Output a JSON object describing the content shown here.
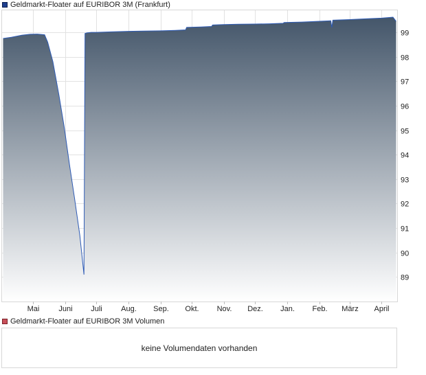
{
  "legend": {
    "price_label": "Geldmarkt-Floater auf EURIBOR 3M (Frankfurt)",
    "price_color": "#1f3f8f",
    "volume_label": "Geldmarkt-Floater auf EURIBOR 3M Volumen",
    "volume_color": "#c8505a"
  },
  "volume_panel": {
    "message": "keine Volumendaten vorhanden"
  },
  "chart_data": {
    "type": "area",
    "title": "",
    "xlabel": "",
    "ylabel": "",
    "ylim": [
      88.0,
      99.9
    ],
    "grid": true,
    "y_axis_position": "right",
    "y_ticks": [
      89,
      90,
      91,
      92,
      93,
      94,
      95,
      96,
      97,
      98,
      99
    ],
    "x_ticks": [
      "Mai",
      "Juni",
      "Juli",
      "Aug.",
      "Sep.",
      "Okt.",
      "Nov.",
      "Dez.",
      "Jan.",
      "Feb.",
      "März",
      "April"
    ],
    "series": [
      {
        "name": "Geldmarkt-Floater auf EURIBOR 3M (Frankfurt)",
        "line_color": "#2e5bb5",
        "fill_top_color": "#44566a",
        "fill_bottom_color": "#ffffff",
        "x": [
          "2023-04-02",
          "2023-04-10",
          "2023-04-20",
          "2023-04-28",
          "2023-05-05",
          "2023-05-12",
          "2023-05-15",
          "2023-05-20",
          "2023-05-26",
          "2023-05-31",
          "2023-06-05",
          "2023-06-10",
          "2023-06-15",
          "2023-06-19",
          "2023-06-20",
          "2023-06-22",
          "2023-06-26",
          "2023-07-01",
          "2023-07-15",
          "2023-08-01",
          "2023-08-15",
          "2023-09-01",
          "2023-09-15",
          "2023-09-25",
          "2023-09-26",
          "2023-10-10",
          "2023-10-20",
          "2023-10-21",
          "2023-11-01",
          "2023-11-15",
          "2023-12-01",
          "2023-12-15",
          "2023-12-28",
          "2023-12-29",
          "2024-01-15",
          "2024-02-01",
          "2024-02-12",
          "2024-02-13",
          "2024-02-14",
          "2024-03-01",
          "2024-03-15",
          "2024-04-01",
          "2024-04-12",
          "2024-04-15"
        ],
        "values": [
          98.75,
          98.8,
          98.88,
          98.92,
          98.93,
          98.9,
          98.6,
          97.8,
          96.4,
          95.1,
          93.6,
          92.2,
          90.7,
          89.1,
          98.95,
          98.98,
          99.0,
          99.0,
          99.02,
          99.04,
          99.05,
          99.06,
          99.08,
          99.1,
          99.2,
          99.22,
          99.24,
          99.3,
          99.32,
          99.33,
          99.34,
          99.35,
          99.37,
          99.4,
          99.42,
          99.45,
          99.47,
          99.2,
          99.5,
          99.52,
          99.55,
          99.58,
          99.62,
          99.45
        ]
      }
    ]
  }
}
